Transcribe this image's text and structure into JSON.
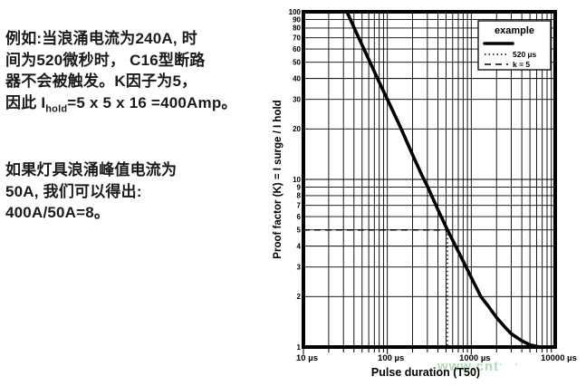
{
  "text": {
    "para1": {
      "line1": "例如:当浪涌电流为240A, 时",
      "line2": "间为520微秒时， C16型断路",
      "line3": "器不会被触发。K因子为5，",
      "line4_pre": "因此 I",
      "line4_sub": "hold",
      "line4_post": "=5 x 5 x 16 =400Amp。"
    },
    "para2": {
      "line1": "如果灯具浪涌峰值电流为",
      "line2": "50A, 我们可以得出:",
      "line3": "400A/50A=8。"
    }
  },
  "watermark": {
    "text": "www.cnt",
    "trail": "··",
    "color": "#7fc08f"
  },
  "chart_data": {
    "type": "line",
    "title": "",
    "xlabel": "Pulse duration (T50)",
    "ylabel": "Proof factor (K) = I surge / I hold",
    "x_scale": "log",
    "y_scale": "log",
    "xlim": [
      10,
      10000
    ],
    "ylim": [
      1,
      100
    ],
    "grid": true,
    "x_ticks": [
      10,
      100,
      1000,
      10000
    ],
    "x_tick_labels": [
      "10 µs",
      "100 µs",
      "1000 µs",
      "10000 µs"
    ],
    "y_ticks": [
      100,
      90,
      80,
      70,
      60,
      50,
      40,
      30,
      20,
      10,
      9,
      8,
      7,
      6,
      5,
      4,
      3,
      2,
      1
    ],
    "legend": {
      "title": "example",
      "position": "top-right",
      "entries": [
        {
          "style": "solid",
          "label": ""
        },
        {
          "style": "dotted",
          "label": "520 µs"
        },
        {
          "style": "dashed",
          "label": "k = 5"
        }
      ]
    },
    "series": [
      {
        "name": "breaker-tripping-curve",
        "style": "solid",
        "points": [
          [
            33,
            100
          ],
          [
            45,
            71
          ],
          [
            60,
            52
          ],
          [
            80,
            38
          ],
          [
            100,
            30
          ],
          [
            140,
            21
          ],
          [
            200,
            14
          ],
          [
            260,
            10.5
          ],
          [
            300,
            9.1
          ],
          [
            400,
            6.6
          ],
          [
            520,
            5
          ],
          [
            650,
            4.0
          ],
          [
            800,
            3.25
          ],
          [
            1000,
            2.6
          ],
          [
            1300,
            2.0
          ],
          [
            1600,
            1.75
          ],
          [
            2000,
            1.5
          ],
          [
            2500,
            1.32
          ],
          [
            3000,
            1.2
          ],
          [
            4000,
            1.09
          ],
          [
            5000,
            1.03
          ],
          [
            6500,
            1.0
          ],
          [
            10000,
            1.0
          ]
        ]
      },
      {
        "name": "k-equals-5-guide",
        "style": "dashed",
        "points": [
          [
            10,
            5
          ],
          [
            520,
            5
          ]
        ]
      },
      {
        "name": "520us-guide",
        "style": "dotted",
        "points": [
          [
            520,
            5
          ],
          [
            520,
            1
          ]
        ]
      }
    ]
  }
}
